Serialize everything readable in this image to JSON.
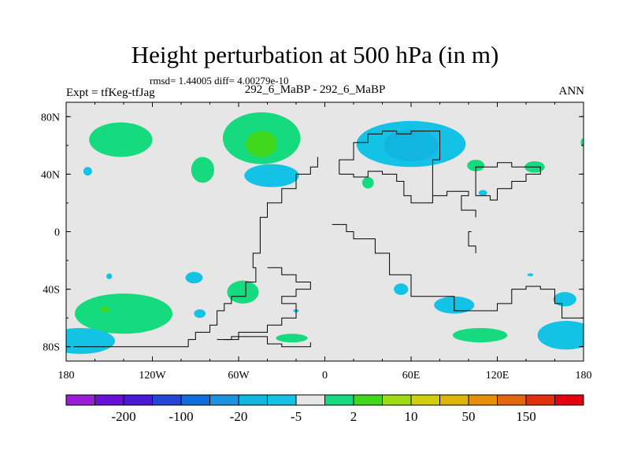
{
  "header": {
    "title": "Height perturbation at 500 hPa (in m)",
    "stats": "rmsd= 1.44005 diff= 4.00279e-10",
    "case_label": "292_6_MaBP - 292_6_MaBP",
    "expt_label": "Expt = tfKeg-tfJag",
    "period_label": "ANN"
  },
  "chart_data": {
    "type": "heatmap",
    "title": "Height perturbation at 500 hPa (in m)",
    "x_axis": {
      "range": [
        -180,
        180
      ],
      "ticks": [
        -180,
        -120,
        -60,
        0,
        60,
        120,
        180
      ],
      "tick_labels": [
        "180",
        "120W",
        "60W",
        "0",
        "60E",
        "120E",
        "180"
      ]
    },
    "y_axis": {
      "range": [
        -90,
        90
      ],
      "ticks": [
        80,
        40,
        0,
        -40,
        -80
      ],
      "tick_labels": [
        "80N",
        "40N",
        "0",
        "40S",
        "80S"
      ]
    },
    "background_fill": "#e6e6e6",
    "colorbar": {
      "colors": [
        "#9b1cd9",
        "#6a0fd6",
        "#4a19d6",
        "#2346d9",
        "#0f6ddc",
        "#1b93e1",
        "#11b5df",
        "#14c2e6",
        "#e6e6e6",
        "#16db7e",
        "#3fd81c",
        "#a0dc16",
        "#d1cf0c",
        "#deb608",
        "#e6900a",
        "#e3650d",
        "#e32f0c",
        "#e6000f"
      ],
      "tick_labels": [
        "-200",
        "-100",
        "-20",
        "-5",
        "2",
        "10",
        "50",
        "150"
      ]
    },
    "contour_regions": [
      {
        "lon": -142,
        "lat": 64,
        "rlon": 22,
        "rlat": 12,
        "level": "2 to 10",
        "color": "#16db7e"
      },
      {
        "lon": -44,
        "lat": 65,
        "rlon": 27,
        "rlat": 18,
        "level": "2 to 10",
        "color": "#16db7e"
      },
      {
        "lon": -44,
        "lat": 61,
        "rlon": 11,
        "rlat": 9,
        "level": "10 to 20",
        "color": "#3fd81c"
      },
      {
        "lon": 60,
        "lat": 61,
        "rlon": 38,
        "rlat": 16,
        "level": "-5 to -2",
        "color": "#14c2e6"
      },
      {
        "lon": 60,
        "lat": 60,
        "rlon": 19,
        "rlat": 11,
        "level": "-10 to -5",
        "color": "#11b5df"
      },
      {
        "lon": -85,
        "lat": 43,
        "rlon": 8,
        "rlat": 9,
        "level": "2 to 10",
        "color": "#16db7e"
      },
      {
        "lon": -37,
        "lat": 39,
        "rlon": 19,
        "rlat": 8,
        "level": "-5 to -2",
        "color": "#14c2e6"
      },
      {
        "lon": -165,
        "lat": 42,
        "rlon": 3,
        "rlat": 3,
        "level": "-5 to -2",
        "color": "#14c2e6"
      },
      {
        "lon": 30,
        "lat": 34,
        "rlon": 4,
        "rlat": 4,
        "level": "2 to 10",
        "color": "#16db7e"
      },
      {
        "lon": 105,
        "lat": 46,
        "rlon": 6,
        "rlat": 4,
        "level": "2 to 10",
        "color": "#16db7e"
      },
      {
        "lon": 110,
        "lat": 27,
        "rlon": 3,
        "rlat": 2,
        "level": "-5 to -2",
        "color": "#14c2e6"
      },
      {
        "lon": 146,
        "lat": 45,
        "rlon": 7,
        "rlat": 4,
        "level": "2 to 10",
        "color": "#16db7e"
      },
      {
        "lon": 180,
        "lat": 62,
        "rlon": 2,
        "rlat": 3,
        "level": "2 to 10",
        "color": "#16db7e"
      },
      {
        "lon": -140,
        "lat": -57,
        "rlon": 34,
        "rlat": 14,
        "level": "2 to 10",
        "color": "#16db7e"
      },
      {
        "lon": -170,
        "lat": -76,
        "rlon": 24,
        "rlat": 9,
        "level": "-5 to -2",
        "color": "#14c2e6"
      },
      {
        "lon": -153,
        "lat": -54,
        "rlon": 3,
        "rlat": 2,
        "level": "10 to 20",
        "color": "#3fd81c"
      },
      {
        "lon": -150,
        "lat": -31,
        "rlon": 2,
        "rlat": 2,
        "level": "-5 to -2",
        "color": "#14c2e6"
      },
      {
        "lon": -91,
        "lat": -32,
        "rlon": 6,
        "rlat": 4,
        "level": "-5 to -2",
        "color": "#14c2e6"
      },
      {
        "lon": -57,
        "lat": -42,
        "rlon": 11,
        "rlat": 8,
        "level": "2 to 10",
        "color": "#16db7e"
      },
      {
        "lon": -87,
        "lat": -57,
        "rlon": 4,
        "rlat": 3,
        "level": "-5 to -2",
        "color": "#14c2e6"
      },
      {
        "lon": -20,
        "lat": -55,
        "rlon": 2,
        "rlat": 1,
        "level": "-5 to -2",
        "color": "#14c2e6"
      },
      {
        "lon": -23,
        "lat": -74,
        "rlon": 11,
        "rlat": 3,
        "level": "2 to 10",
        "color": "#16db7e"
      },
      {
        "lon": 53,
        "lat": -40,
        "rlon": 5,
        "rlat": 4,
        "level": "-5 to -2",
        "color": "#14c2e6"
      },
      {
        "lon": 90,
        "lat": -51,
        "rlon": 14,
        "rlat": 6,
        "level": "-5 to -2",
        "color": "#14c2e6"
      },
      {
        "lon": 108,
        "lat": -72,
        "rlon": 19,
        "rlat": 5,
        "level": "2 to 10",
        "color": "#16db7e"
      },
      {
        "lon": 168,
        "lat": -72,
        "rlon": 20,
        "rlat": 10,
        "level": "-5 to -2",
        "color": "#14c2e6"
      },
      {
        "lon": 167,
        "lat": -47,
        "rlon": 8,
        "rlat": 5,
        "level": "-5 to -2",
        "color": "#14c2e6"
      },
      {
        "lon": 143,
        "lat": -30,
        "rlon": 2,
        "rlat": 1,
        "level": "-5 to -2",
        "color": "#14c2e6"
      }
    ],
    "topography_contours": [
      [
        [
          -175,
          -80
        ],
        [
          -100,
          -80
        ],
        [
          -95,
          -75
        ],
        [
          -90,
          -70
        ],
        [
          -80,
          -65
        ],
        [
          -75,
          -55
        ],
        [
          -70,
          -50
        ],
        [
          -65,
          -45
        ],
        [
          -55,
          -35
        ],
        [
          -48,
          -25
        ],
        [
          -50,
          -15
        ],
        [
          -45,
          -5
        ],
        [
          -45,
          10
        ],
        [
          -40,
          20
        ],
        [
          -30,
          30
        ],
        [
          -20,
          36
        ],
        [
          -20,
          40
        ],
        [
          -10,
          45
        ],
        [
          -5,
          52
        ]
      ],
      [
        [
          -70,
          -75
        ],
        [
          -60,
          -70
        ],
        [
          -40,
          -65
        ],
        [
          -30,
          -60
        ],
        [
          -20,
          -50
        ],
        [
          -30,
          -45
        ],
        [
          -20,
          -40
        ],
        [
          -10,
          -35
        ],
        [
          -20,
          -30
        ],
        [
          -30,
          -25
        ],
        [
          -40,
          -25
        ]
      ],
      [
        [
          -75,
          -75
        ],
        [
          -65,
          -73
        ],
        [
          -40,
          -78
        ],
        [
          -30,
          -80
        ],
        [
          -10,
          -80
        ],
        [
          -10,
          -77
        ]
      ],
      [
        [
          10,
          40
        ],
        [
          20,
          38
        ],
        [
          30,
          42
        ],
        [
          40,
          40
        ],
        [
          50,
          35
        ],
        [
          55,
          25
        ],
        [
          60,
          20
        ],
        [
          75,
          30
        ],
        [
          75,
          50
        ],
        [
          80,
          55
        ],
        [
          80,
          70
        ],
        [
          60,
          68
        ],
        [
          50,
          70
        ],
        [
          40,
          68
        ],
        [
          30,
          62
        ],
        [
          20,
          50
        ],
        [
          10,
          40
        ]
      ],
      [
        [
          5,
          5
        ],
        [
          15,
          0
        ],
        [
          20,
          -5
        ],
        [
          35,
          -15
        ],
        [
          45,
          -30
        ],
        [
          60,
          -45
        ],
        [
          90,
          -55
        ],
        [
          120,
          -50
        ],
        [
          130,
          -40
        ],
        [
          140,
          -38
        ],
        [
          150,
          -40
        ],
        [
          160,
          -50
        ],
        [
          165,
          -60
        ],
        [
          180,
          -60
        ]
      ],
      [
        [
          120,
          30
        ],
        [
          130,
          35
        ],
        [
          140,
          40
        ],
        [
          150,
          40
        ],
        [
          150,
          45
        ],
        [
          130,
          48
        ],
        [
          120,
          45
        ],
        [
          105,
          35
        ],
        [
          105,
          25
        ],
        [
          115,
          22
        ],
        [
          120,
          30
        ]
      ],
      [
        [
          75,
          25
        ],
        [
          85,
          28
        ],
        [
          100,
          25
        ],
        [
          95,
          15
        ],
        [
          105,
          10
        ]
      ],
      [
        [
          102,
          0
        ],
        [
          100,
          -10
        ],
        [
          105,
          -15
        ]
      ]
    ]
  }
}
